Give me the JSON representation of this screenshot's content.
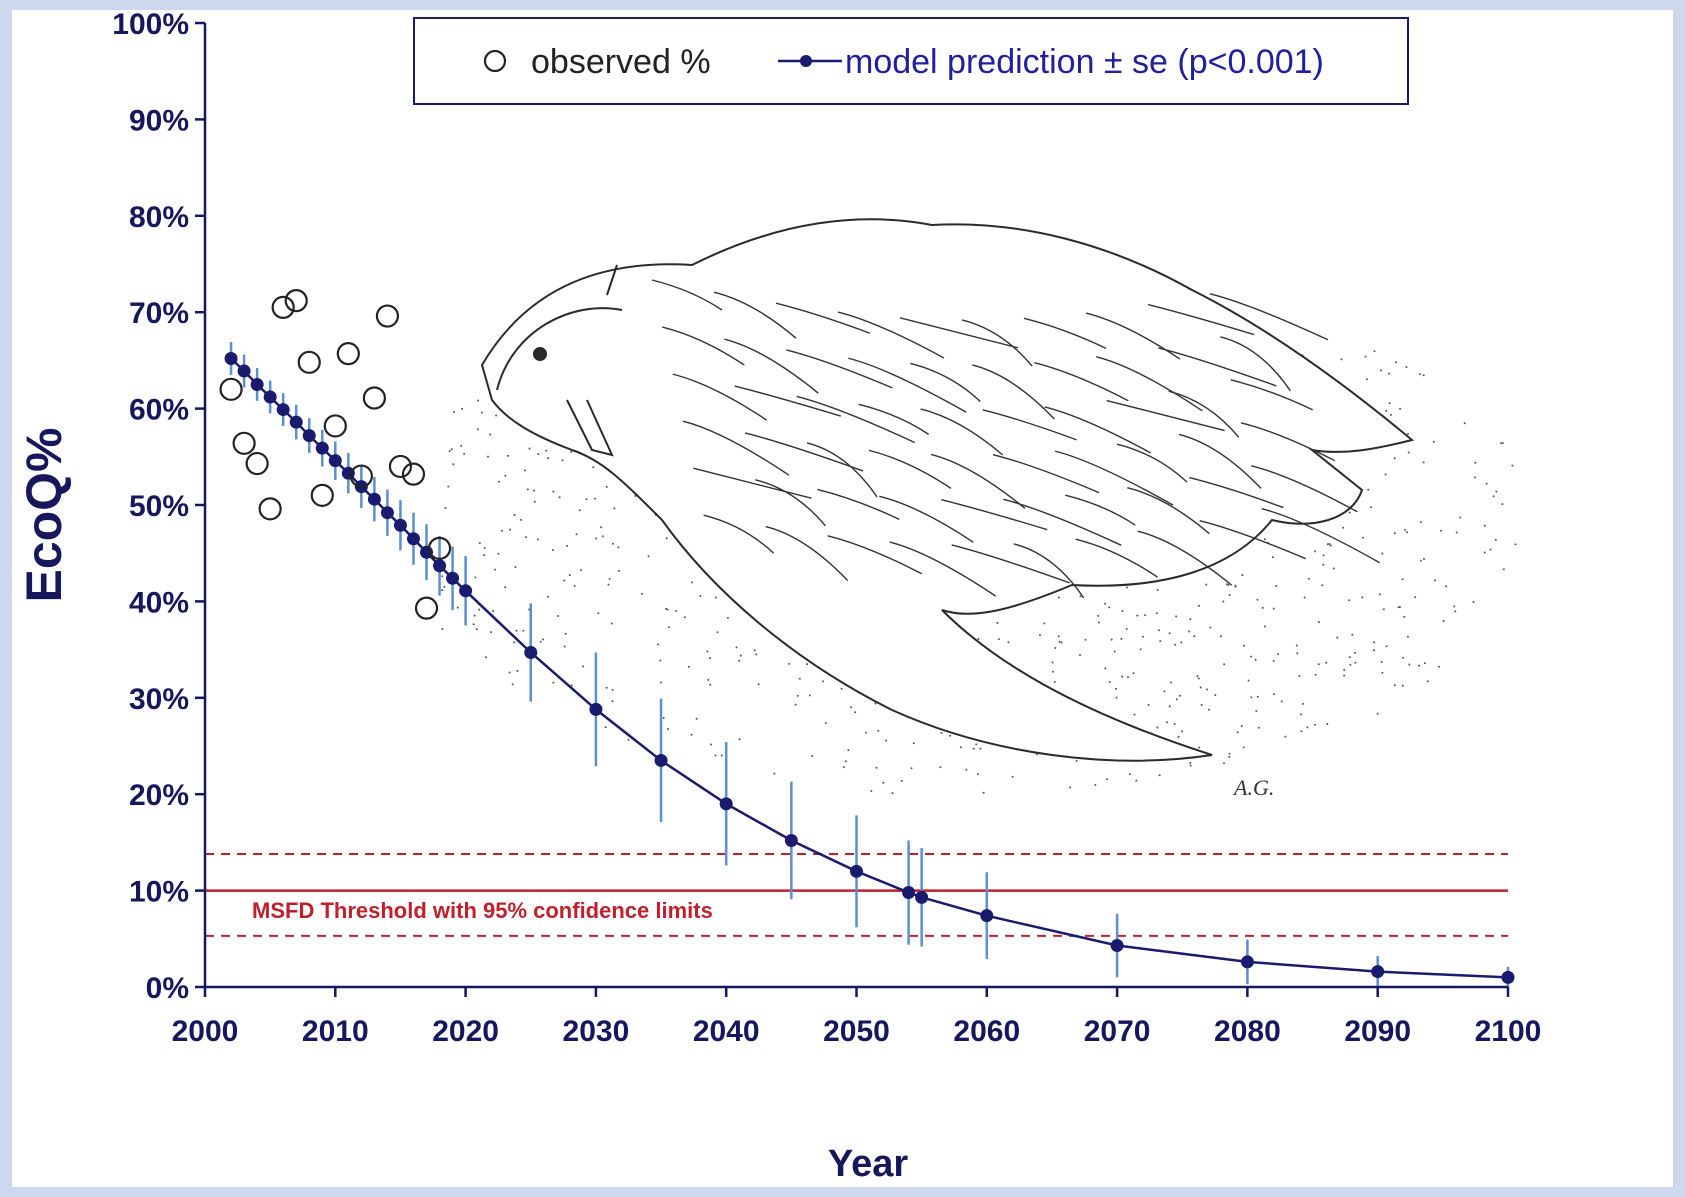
{
  "chart_data": {
    "type": "line",
    "title": "",
    "xlabel": "Year",
    "ylabel": "EcoQ%",
    "xlim": [
      2000,
      2100
    ],
    "ylim": [
      0,
      100
    ],
    "x_ticks": [
      2000,
      2010,
      2020,
      2030,
      2040,
      2050,
      2060,
      2070,
      2080,
      2090,
      2100
    ],
    "x_tick_labels": [
      "2000",
      "2010",
      "2020",
      "2030",
      "2040",
      "2050",
      "2060",
      "2070",
      "2080",
      "2090",
      "2100"
    ],
    "y_ticks": [
      0,
      10,
      20,
      30,
      40,
      50,
      60,
      70,
      80,
      90,
      100
    ],
    "y_tick_labels": [
      "0%",
      "10%",
      "20%",
      "30%",
      "40%",
      "50%",
      "60%",
      "70%",
      "80%",
      "90%",
      "100%"
    ],
    "grid": false,
    "legend_position": "top",
    "colors": {
      "model": "#1a1a6e",
      "error_bar": "#5b8fd0",
      "threshold": "#c0202c",
      "observed": "#222222",
      "axis": "#17175e"
    },
    "series": [
      {
        "name": "observed %",
        "kind": "scatter",
        "x": [
          2002,
          2003,
          2004,
          2005,
          2006,
          2007,
          2008,
          2009,
          2010,
          2011,
          2012,
          2013,
          2014,
          2015,
          2016,
          2017,
          2018
        ],
        "y": [
          62,
          56.4,
          54.3,
          49.6,
          70.5,
          71.2,
          64.8,
          51,
          58.2,
          65.7,
          53,
          61.1,
          69.6,
          54,
          53.2,
          39.3,
          45.5
        ]
      },
      {
        "name": "model prediction ± se (p<0.001)",
        "kind": "line-with-errorbars",
        "x": [
          2002,
          2003,
          2004,
          2005,
          2006,
          2007,
          2008,
          2009,
          2010,
          2011,
          2012,
          2013,
          2014,
          2015,
          2016,
          2017,
          2018,
          2019,
          2020,
          2025,
          2030,
          2035,
          2040,
          2045,
          2050,
          2054,
          2055,
          2060,
          2070,
          2080,
          2090,
          2100
        ],
        "y": [
          65.2,
          63.9,
          62.5,
          61.2,
          59.9,
          58.6,
          57.2,
          55.9,
          54.6,
          53.3,
          51.9,
          50.6,
          49.2,
          47.9,
          46.5,
          45.1,
          43.7,
          42.4,
          41.1,
          34.7,
          28.8,
          23.5,
          19.0,
          15.2,
          12.0,
          9.8,
          9.3,
          7.4,
          4.3,
          2.6,
          1.6,
          1.0
        ],
        "se": [
          1.7,
          1.7,
          1.7,
          1.7,
          1.7,
          1.8,
          1.8,
          1.9,
          2.0,
          2.1,
          2.2,
          2.3,
          2.4,
          2.6,
          2.7,
          2.9,
          3.1,
          3.3,
          3.6,
          5.1,
          5.9,
          6.4,
          6.4,
          6.1,
          5.8,
          5.4,
          5.1,
          4.5,
          3.3,
          2.3,
          1.6,
          1.1
        ]
      }
    ],
    "reference_lines": [
      {
        "y": 10,
        "style": "solid",
        "label": "MSFD Threshold with 95% confidence limits"
      },
      {
        "y": 13.8,
        "style": "dashed"
      },
      {
        "y": 5.3,
        "style": "dashed"
      }
    ],
    "annotations": [
      "A.G."
    ],
    "background_illustration": "drawing of a dead seabird"
  }
}
